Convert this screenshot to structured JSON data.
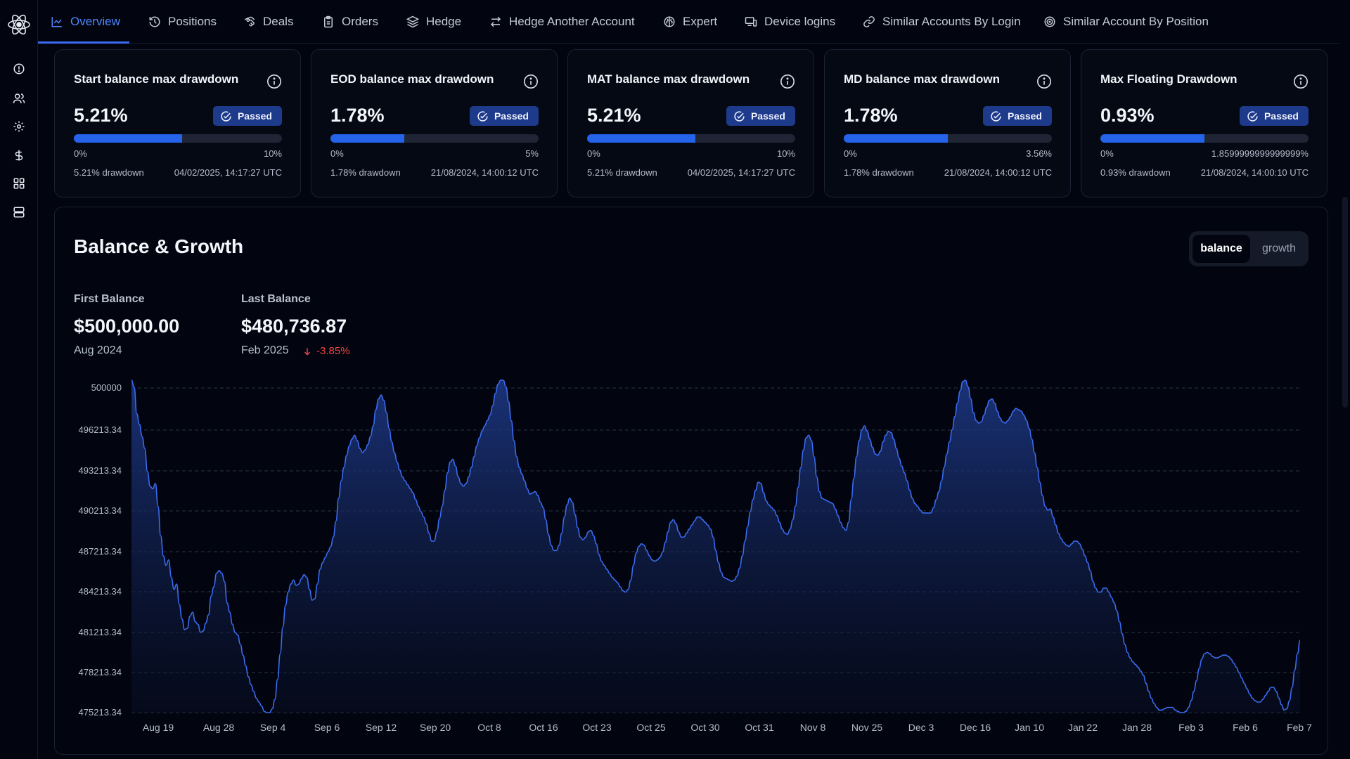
{
  "sidebar": {
    "logo": "brain-logo",
    "icons": [
      "alert-circle-icon",
      "users-icon",
      "settings-icon",
      "dollar-icon",
      "grid-icon",
      "server-icon"
    ]
  },
  "tabs": [
    {
      "label": "Overview",
      "icon": "chart-line-icon",
      "active": true
    },
    {
      "label": "Positions",
      "icon": "history-icon",
      "active": false
    },
    {
      "label": "Deals",
      "icon": "handshake-icon",
      "active": false
    },
    {
      "label": "Orders",
      "icon": "clipboard-icon",
      "active": false
    },
    {
      "label": "Hedge",
      "icon": "layers-icon",
      "active": false
    },
    {
      "label": "Hedge Another Account",
      "icon": "arrows-swap-icon",
      "active": false
    },
    {
      "label": "Expert",
      "icon": "brain-icon",
      "active": false
    },
    {
      "label": "Device logins",
      "icon": "devices-icon",
      "active": false
    },
    {
      "label": "Similar Accounts By Login",
      "icon": "link-icon",
      "active": false
    },
    {
      "label": "Similar Account By Position",
      "icon": "target-icon",
      "active": false
    }
  ],
  "cards": [
    {
      "title": "Start balance max drawdown",
      "value": "5.21%",
      "status": "Passed",
      "progress": 0.521,
      "min": "0%",
      "max": "10%",
      "drawdown": "5.21% drawdown",
      "time": "04/02/2025, 14:17:27 UTC"
    },
    {
      "title": "EOD balance max drawdown",
      "value": "1.78%",
      "status": "Passed",
      "progress": 0.356,
      "min": "0%",
      "max": "5%",
      "drawdown": "1.78% drawdown",
      "time": "21/08/2024, 14:00:12 UTC"
    },
    {
      "title": "MAT balance max drawdown",
      "value": "5.21%",
      "status": "Passed",
      "progress": 0.521,
      "min": "0%",
      "max": "10%",
      "drawdown": "5.21% drawdown",
      "time": "04/02/2025, 14:17:27 UTC"
    },
    {
      "title": "MD balance max drawdown",
      "value": "1.78%",
      "status": "Passed",
      "progress": 0.5,
      "min": "0%",
      "max": "3.56%",
      "drawdown": "1.78% drawdown",
      "time": "21/08/2024, 14:00:12 UTC"
    },
    {
      "title": "Max Floating Drawdown",
      "value": "0.93%",
      "status": "Passed",
      "progress": 0.5,
      "min": "0%",
      "max": "1.8599999999999999%",
      "drawdown": "0.93% drawdown",
      "time": "21/08/2024, 14:00:10 UTC"
    }
  ],
  "balance_growth": {
    "title": "Balance & Growth",
    "toggle": {
      "balance": "balance",
      "growth": "growth",
      "selected": "balance"
    },
    "first": {
      "label": "First Balance",
      "value": "$500,000.00",
      "date": "Aug 2024"
    },
    "last": {
      "label": "Last Balance",
      "value": "$480,736.87",
      "date": "Feb 2025",
      "change": "-3.85%"
    }
  },
  "colors": {
    "accent": "#3b6bf0",
    "fill": "#1e3a8a",
    "negative": "#ef4444",
    "badge": "#1e3a8a"
  },
  "chart_data": {
    "type": "area",
    "yticks": [
      "500000",
      "496213.34",
      "493213.34",
      "490213.34",
      "487213.34",
      "484213.34",
      "481213.34",
      "478213.34",
      "475213.34"
    ],
    "xticks": [
      "Aug 19",
      "Aug 28",
      "Sep 4",
      "Sep 6",
      "Sep 12",
      "Sep 20",
      "Oct 8",
      "Oct 16",
      "Oct 23",
      "Oct 25",
      "Oct 30",
      "Oct 31",
      "Nov 8",
      "Nov 25",
      "Dec 3",
      "Dec 16",
      "Jan 10",
      "Jan 22",
      "Jan 28",
      "Feb 3",
      "Feb 6",
      "Feb 7"
    ],
    "ylim": [
      475213.34,
      500000
    ],
    "grid": true,
    "series": [
      {
        "values": [
          500000,
          499500,
          497500,
          496700,
          495800,
          494900,
          493200,
          492100,
          491900,
          492300,
          490600,
          488400,
          486900,
          486200,
          486600,
          485300,
          484400,
          484800,
          483300,
          482200,
          481400,
          481500,
          482400,
          482700,
          482000,
          481800,
          481200,
          481300,
          481900,
          482500,
          483900,
          484600,
          485600,
          485800,
          485600,
          485000,
          483400,
          482700,
          481800,
          481200,
          481000,
          480300,
          479500,
          478700,
          477900,
          477300,
          476800,
          476300,
          476000,
          475700,
          475300,
          475100,
          475200,
          475500,
          476200,
          477700,
          479600,
          481600,
          483200,
          484200,
          484800,
          485100,
          484700,
          484800,
          485200,
          485500,
          485300,
          484400,
          483600,
          483700,
          484800,
          485900,
          486400,
          486800,
          487200,
          487600,
          488300,
          489500,
          491200,
          492500,
          493500,
          494400,
          495100,
          495600,
          495900,
          495500,
          494900,
          494600,
          494800,
          495200,
          495800,
          496600,
          497800,
          498600,
          498900,
          498500,
          497600,
          496400,
          495400,
          494600,
          493900,
          493300,
          492800,
          492500,
          492200,
          491900,
          491600,
          491100,
          490600,
          490200,
          489800,
          489300,
          488600,
          488000,
          488000,
          488700,
          489700,
          490600,
          491800,
          493100,
          493900,
          494100,
          493600,
          492800,
          492300,
          492100,
          492300,
          492800,
          493500,
          494300,
          495100,
          495700,
          496200,
          496600,
          497000,
          497400,
          498100,
          499000,
          499700,
          500000,
          500000,
          499500,
          498400,
          497000,
          495500,
          494300,
          493500,
          493000,
          492500,
          491900,
          491500,
          491600,
          491700,
          491400,
          490900,
          490500,
          489600,
          488500,
          487700,
          487300,
          487300,
          487700,
          488600,
          489800,
          490700,
          491200,
          490900,
          490000,
          489000,
          488300,
          488100,
          488300,
          488700,
          488800,
          488400,
          487800,
          487000,
          486500,
          486200,
          485900,
          485600,
          485300,
          485100,
          484900,
          484600,
          484300,
          484200,
          484400,
          485100,
          486200,
          487100,
          487600,
          487800,
          487700,
          487300,
          486900,
          486600,
          486500,
          486600,
          486800,
          487200,
          487900,
          488700,
          489400,
          489600,
          489300,
          488700,
          488300,
          488300,
          488600,
          488900,
          489200,
          489500,
          489800,
          489800,
          489600,
          489400,
          489200,
          488900,
          488300,
          487300,
          486400,
          485700,
          485300,
          485200,
          485100,
          485000,
          485100,
          485400,
          486000,
          486900,
          488000,
          489100,
          490200,
          491100,
          491800,
          492400,
          492300,
          491600,
          491000,
          490700,
          490500,
          490300,
          489900,
          489400,
          488900,
          488600,
          488500,
          488900,
          489600,
          490600,
          492000,
          493500,
          494800,
          495700,
          495900,
          495500,
          494300,
          492800,
          491700,
          491200,
          491100,
          491000,
          490900,
          490800,
          490400,
          489900,
          489400,
          489000,
          488800,
          489400,
          491100,
          492700,
          494300,
          495500,
          496300,
          496600,
          496200,
          495600,
          495000,
          494500,
          494400,
          494700,
          495400,
          495900,
          496200,
          496100,
          495600,
          494900,
          494200,
          493600,
          493100,
          492500,
          491800,
          491200,
          490800,
          490600,
          490300,
          490100,
          490100,
          490100,
          490100,
          490500,
          491100,
          491700,
          492500,
          493500,
          494500,
          495400,
          496300,
          497300,
          498300,
          499200,
          499900,
          500000,
          499500,
          498600,
          497600,
          497000,
          496800,
          496900,
          497400,
          498000,
          498500,
          498600,
          498300,
          497700,
          497200,
          496900,
          496800,
          497000,
          497300,
          497700,
          497900,
          497800,
          497700,
          497400,
          497000,
          496400,
          495600,
          494600,
          493500,
          492400,
          491400,
          490600,
          490300,
          490400,
          489800,
          489200,
          488600,
          488200,
          487900,
          487700,
          487600,
          487800,
          488000,
          488000,
          487800,
          487400,
          486900,
          486400,
          485800,
          485000,
          484500,
          484200,
          484200,
          484500,
          484500,
          484200,
          483800,
          483400,
          482800,
          482000,
          481100,
          480300,
          479700,
          479300,
          479000,
          478800,
          478600,
          478300,
          478000,
          477400,
          476800,
          476300,
          475900,
          475600,
          475400,
          475400,
          475500,
          475600,
          475600,
          475600,
          475400,
          475300,
          475200,
          475200,
          475300,
          475600,
          476100,
          476800,
          477600,
          478500,
          479200,
          479600,
          479700,
          479600,
          479400,
          479300,
          479300,
          479400,
          479500,
          479500,
          479400,
          479200,
          478900,
          478600,
          478200,
          477800,
          477400,
          477000,
          476600,
          476300,
          476100,
          476000,
          476000,
          476200,
          476500,
          476800,
          477100,
          477100,
          476800,
          476300,
          475800,
          475400,
          475500,
          476100,
          477100,
          478400,
          479600,
          480600
        ]
      }
    ]
  }
}
